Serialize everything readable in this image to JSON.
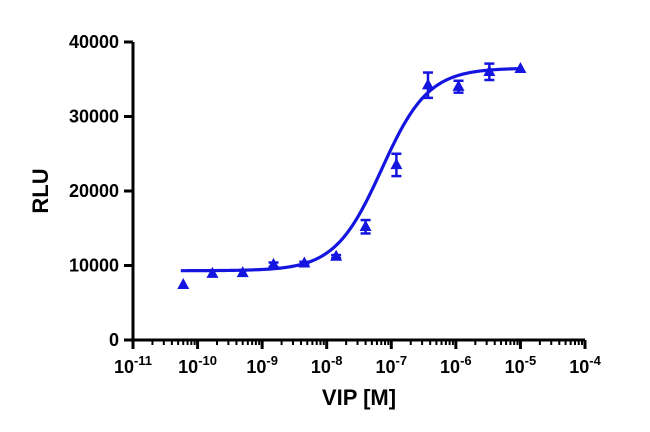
{
  "chart_data": {
    "type": "scatter",
    "title": "",
    "xlabel": "VIP [M]",
    "ylabel": "RLU",
    "x_scale": "log",
    "xlim": [
      1e-11,
      0.0001
    ],
    "ylim": [
      0,
      40000
    ],
    "grid": false,
    "legend": "none",
    "x_ticks": [
      {
        "value": 1e-11,
        "base": "10",
        "exp": "-11"
      },
      {
        "value": 1e-10,
        "base": "10",
        "exp": "-10"
      },
      {
        "value": 1e-09,
        "base": "10",
        "exp": "-9"
      },
      {
        "value": 1e-08,
        "base": "10",
        "exp": "-8"
      },
      {
        "value": 1e-07,
        "base": "10",
        "exp": "-7"
      },
      {
        "value": 1e-06,
        "base": "10",
        "exp": "-6"
      },
      {
        "value": 1e-05,
        "base": "10",
        "exp": "-5"
      },
      {
        "value": 0.0001,
        "base": "10",
        "exp": "-4"
      }
    ],
    "y_ticks": [
      {
        "value": 0,
        "label": "0"
      },
      {
        "value": 10000,
        "label": "10000"
      },
      {
        "value": 20000,
        "label": "20000"
      },
      {
        "value": 30000,
        "label": "30000"
      },
      {
        "value": 40000,
        "label": "40000"
      }
    ],
    "series": [
      {
        "marker": "triangle",
        "color": "#1515e0",
        "points": [
          {
            "x": 6e-11,
            "y": 7400,
            "err": 0
          },
          {
            "x": 1.7e-10,
            "y": 8900,
            "err": 0
          },
          {
            "x": 5e-10,
            "y": 9000,
            "err": 0
          },
          {
            "x": 1.5e-09,
            "y": 10100,
            "err": 300
          },
          {
            "x": 4.5e-09,
            "y": 10300,
            "err": 200
          },
          {
            "x": 1.4e-08,
            "y": 11200,
            "err": 200
          },
          {
            "x": 4e-08,
            "y": 15200,
            "err": 900
          },
          {
            "x": 1.2e-07,
            "y": 23500,
            "err": 1500
          },
          {
            "x": 3.7e-07,
            "y": 34200,
            "err": 1700
          },
          {
            "x": 1.1e-06,
            "y": 34000,
            "err": 800
          },
          {
            "x": 3.3e-06,
            "y": 36000,
            "err": 1100
          },
          {
            "x": 1e-05,
            "y": 36400,
            "err": 0
          }
        ]
      }
    ],
    "fit": {
      "model": "sigmoidal dose-response",
      "bottom": 9300,
      "top": 36500,
      "log_ec50": -7.15,
      "hill_slope": 1.2,
      "x_range": [
        5.5e-11,
        1.05e-05
      ],
      "color": "#1515e0"
    }
  }
}
